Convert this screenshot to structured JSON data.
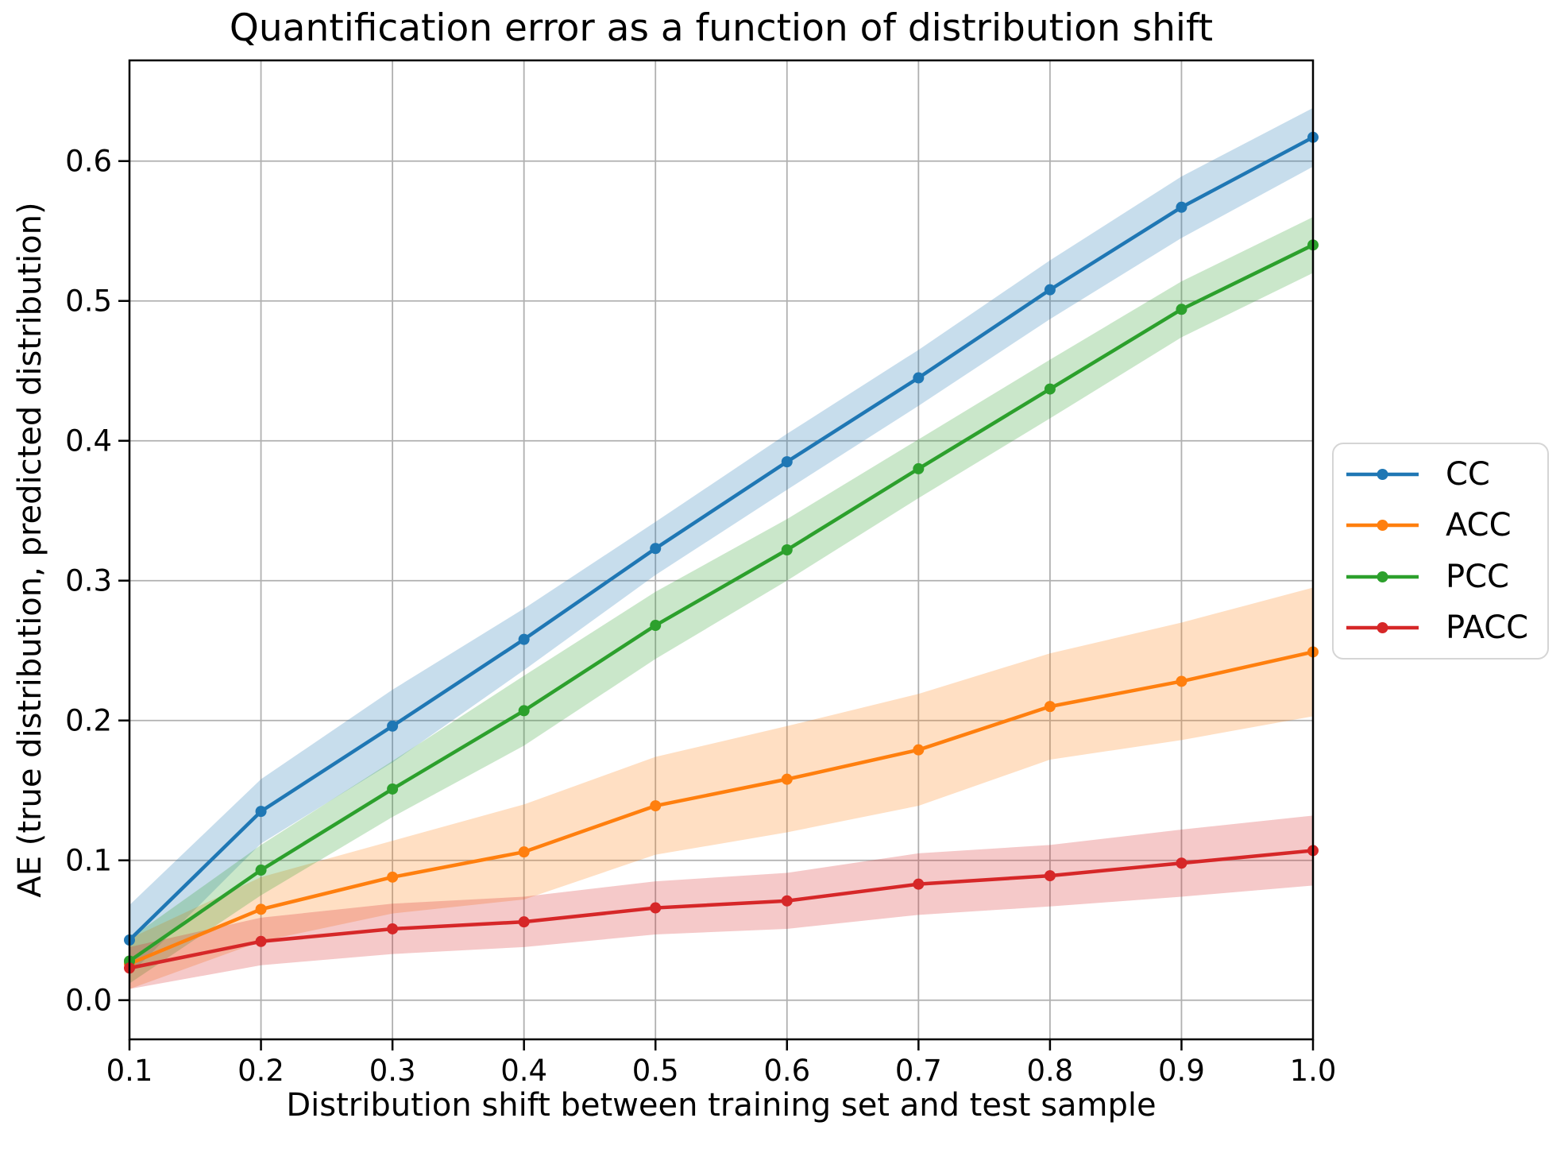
{
  "chart_data": {
    "type": "line",
    "title": "Quantification error as a function of distribution shift",
    "xlabel": "Distribution shift between training set and test sample",
    "ylabel": "AE (true distribution, predicted distribution)",
    "x": [
      0.1,
      0.2,
      0.3,
      0.4,
      0.5,
      0.6,
      0.7,
      0.8,
      0.9,
      1.0
    ],
    "series": [
      {
        "name": "CC",
        "color": "#1f77b4",
        "values": [
          0.043,
          0.135,
          0.196,
          0.258,
          0.323,
          0.385,
          0.445,
          0.508,
          0.567,
          0.617
        ],
        "band_halfwidth": [
          0.025,
          0.023,
          0.026,
          0.022,
          0.019,
          0.02,
          0.02,
          0.021,
          0.022,
          0.021
        ]
      },
      {
        "name": "ACC",
        "color": "#ff7f0e",
        "values": [
          0.026,
          0.065,
          0.088,
          0.106,
          0.139,
          0.158,
          0.179,
          0.21,
          0.228,
          0.249
        ],
        "band_halfwidth": [
          0.018,
          0.023,
          0.026,
          0.034,
          0.035,
          0.038,
          0.04,
          0.038,
          0.042,
          0.046
        ]
      },
      {
        "name": "PCC",
        "color": "#2ca02c",
        "values": [
          0.028,
          0.093,
          0.151,
          0.207,
          0.268,
          0.322,
          0.38,
          0.437,
          0.494,
          0.54
        ],
        "band_halfwidth": [
          0.016,
          0.018,
          0.02,
          0.025,
          0.024,
          0.022,
          0.021,
          0.021,
          0.02,
          0.02
        ]
      },
      {
        "name": "PACC",
        "color": "#d62728",
        "values": [
          0.023,
          0.042,
          0.051,
          0.056,
          0.066,
          0.071,
          0.083,
          0.089,
          0.098,
          0.107
        ],
        "band_halfwidth": [
          0.015,
          0.017,
          0.018,
          0.018,
          0.019,
          0.02,
          0.022,
          0.022,
          0.024,
          0.025
        ]
      }
    ],
    "xlim": [
      0.1,
      1.0
    ],
    "ylim": [
      -0.028,
      0.672
    ],
    "xticks": [
      0.1,
      0.2,
      0.3,
      0.4,
      0.5,
      0.6,
      0.7,
      0.8,
      0.9,
      1.0
    ],
    "xtick_labels": [
      "0.1",
      "0.2",
      "0.3",
      "0.4",
      "0.5",
      "0.6",
      "0.7",
      "0.8",
      "0.9",
      "1.0"
    ],
    "yticks": [
      0.0,
      0.1,
      0.2,
      0.3,
      0.4,
      0.5,
      0.6
    ],
    "ytick_labels": [
      "0.0",
      "0.1",
      "0.2",
      "0.3",
      "0.4",
      "0.5",
      "0.6"
    ],
    "grid": true,
    "grid_color": "#b0b0b0",
    "band_opacity": 0.25,
    "legend": {
      "position": "right-outside",
      "items": [
        "CC",
        "ACC",
        "PCC",
        "PACC"
      ]
    }
  }
}
